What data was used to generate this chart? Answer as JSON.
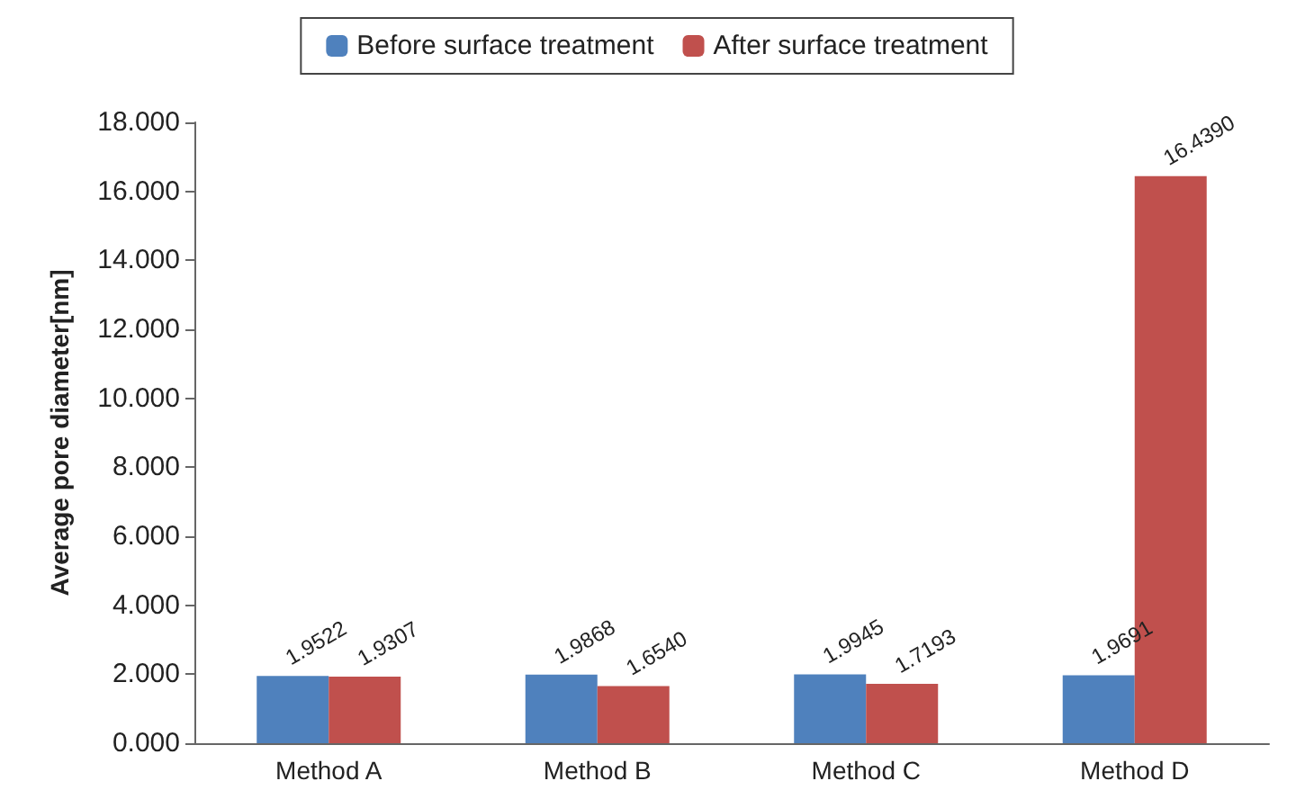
{
  "chart_data": {
    "type": "bar",
    "ylabel": "Average pore diameter[nm]",
    "categories": [
      "Method A",
      "Method B",
      "Method C",
      "Method D"
    ],
    "series": [
      {
        "name": "Before surface treatment",
        "color": "#4f81bd",
        "values": [
          1.9522,
          1.9868,
          1.9945,
          1.9691
        ],
        "value_labels": [
          "1.9522",
          "1.9868",
          "1.9945",
          "1.9691"
        ]
      },
      {
        "name": "After surface treatment",
        "color": "#c0504d",
        "values": [
          1.9307,
          1.654,
          1.7193,
          16.439
        ],
        "value_labels": [
          "1.9307",
          "1.6540",
          "1.7193",
          "16.4390"
        ]
      }
    ],
    "ylim": [
      0,
      18
    ],
    "yticks": [
      {
        "value": 0,
        "label": "0.000"
      },
      {
        "value": 2,
        "label": "2.000"
      },
      {
        "value": 4,
        "label": "4.000"
      },
      {
        "value": 6,
        "label": "6.000"
      },
      {
        "value": 8,
        "label": "8.000"
      },
      {
        "value": 10,
        "label": "10.000"
      },
      {
        "value": 12,
        "label": "12.000"
      },
      {
        "value": 14,
        "label": "14.000"
      },
      {
        "value": 16,
        "label": "16.000"
      },
      {
        "value": 18,
        "label": "18.000"
      }
    ],
    "grid": false,
    "legend": "top"
  }
}
